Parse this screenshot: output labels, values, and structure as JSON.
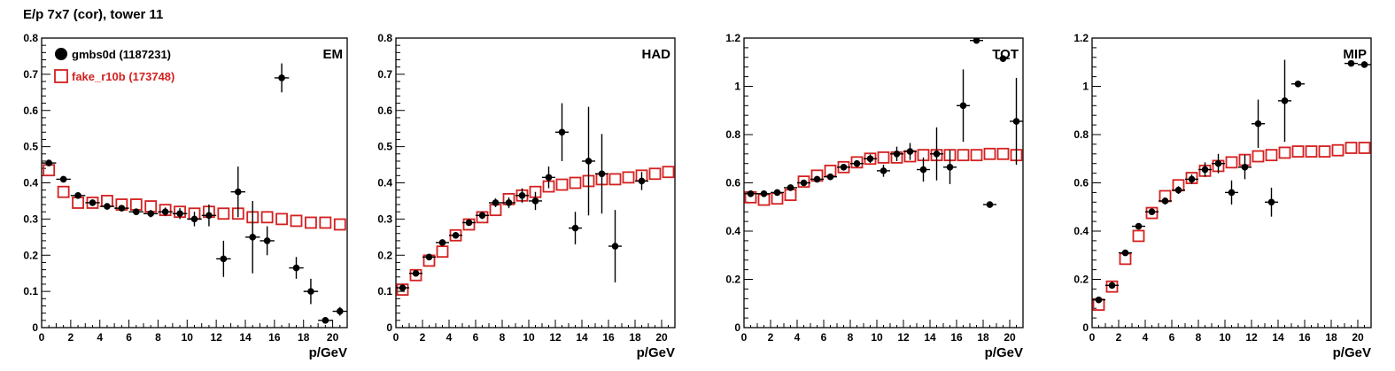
{
  "title": "E/p 7x7 (cor), tower 11",
  "colors": {
    "series_a": "#000000",
    "series_b": "#d42020"
  },
  "legend": [
    {
      "label": "gmbs0d (1187231)",
      "marker": "filled-circle",
      "color": "#000000"
    },
    {
      "label": "fake_r10b (173748)",
      "marker": "open-square",
      "color": "#d42020"
    }
  ],
  "chart_data": [
    {
      "type": "scatter",
      "panel_label": "EM",
      "xlabel": "p/GeV",
      "ylabel": "",
      "xlim": [
        0,
        21
      ],
      "ylim": [
        0,
        0.8
      ],
      "xticks": [
        0,
        2,
        4,
        6,
        8,
        10,
        12,
        14,
        16,
        18,
        20
      ],
      "yticks": [
        0,
        0.1,
        0.2,
        0.3,
        0.4,
        0.5,
        0.6,
        0.7,
        0.8
      ],
      "ytick_labels": [
        "0",
        "0.1",
        "0.2",
        "0.3",
        "0.4",
        "0.5",
        "0.6",
        "0.7",
        "0.8"
      ],
      "series": [
        {
          "name": "gmbs0d (1187231)",
          "x": [
            0.5,
            1.5,
            2.5,
            3.5,
            4.5,
            5.5,
            6.5,
            7.5,
            8.5,
            9.5,
            10.5,
            11.5,
            12.5,
            13.5,
            14.5,
            15.5,
            16.5,
            17.5,
            18.5,
            19.5,
            20.5
          ],
          "y": [
            0.455,
            0.41,
            0.365,
            0.345,
            0.335,
            0.33,
            0.32,
            0.315,
            0.32,
            0.315,
            0.3,
            0.31,
            0.19,
            0.375,
            0.25,
            0.24,
            0.69,
            0.165,
            0.1,
            0.02,
            0.045
          ],
          "err": [
            0.008,
            0.006,
            0.006,
            0.006,
            0.006,
            0.007,
            0.008,
            0.01,
            0.012,
            0.015,
            0.02,
            0.03,
            0.05,
            0.07,
            0.1,
            0.04,
            0.04,
            0.03,
            0.035,
            0.008,
            0.012
          ]
        },
        {
          "name": "fake_r10b (173748)",
          "x": [
            0.5,
            1.5,
            2.5,
            3.5,
            4.5,
            5.5,
            6.5,
            7.5,
            8.5,
            9.5,
            10.5,
            11.5,
            12.5,
            13.5,
            14.5,
            15.5,
            16.5,
            17.5,
            18.5,
            19.5,
            20.5
          ],
          "y": [
            0.435,
            0.375,
            0.345,
            0.345,
            0.35,
            0.34,
            0.34,
            0.335,
            0.325,
            0.32,
            0.315,
            0.32,
            0.315,
            0.315,
            0.305,
            0.305,
            0.3,
            0.295,
            0.29,
            0.29,
            0.285
          ]
        }
      ]
    },
    {
      "type": "scatter",
      "panel_label": "HAD",
      "xlabel": "p/GeV",
      "ylabel": "",
      "xlim": [
        0,
        21
      ],
      "ylim": [
        0,
        0.8
      ],
      "xticks": [
        0,
        2,
        4,
        6,
        8,
        10,
        12,
        14,
        16,
        18,
        20
      ],
      "yticks": [
        0,
        0.1,
        0.2,
        0.3,
        0.4,
        0.5,
        0.6,
        0.7,
        0.8
      ],
      "ytick_labels": [
        "0",
        "0.1",
        "0.2",
        "0.3",
        "0.4",
        "0.5",
        "0.6",
        "0.7",
        "0.8"
      ],
      "series": [
        {
          "name": "gmbs0d (1187231)",
          "x": [
            0.5,
            1.5,
            2.5,
            3.5,
            4.5,
            5.5,
            6.5,
            7.5,
            8.5,
            9.5,
            10.5,
            11.5,
            12.5,
            13.5,
            14.5,
            15.5,
            16.5,
            18.5
          ],
          "y": [
            0.11,
            0.15,
            0.195,
            0.235,
            0.255,
            0.29,
            0.31,
            0.345,
            0.345,
            0.365,
            0.35,
            0.415,
            0.54,
            0.275,
            0.46,
            0.425,
            0.225,
            0.405
          ],
          "err": [
            0.006,
            0.006,
            0.006,
            0.006,
            0.008,
            0.008,
            0.01,
            0.012,
            0.015,
            0.02,
            0.025,
            0.03,
            0.08,
            0.045,
            0.15,
            0.11,
            0.1,
            0.025
          ]
        },
        {
          "name": "fake_r10b (173748)",
          "x": [
            0.5,
            1.5,
            2.5,
            3.5,
            4.5,
            5.5,
            6.5,
            7.5,
            8.5,
            9.5,
            10.5,
            11.5,
            12.5,
            13.5,
            14.5,
            15.5,
            16.5,
            17.5,
            18.5,
            19.5,
            20.5
          ],
          "y": [
            0.105,
            0.145,
            0.185,
            0.21,
            0.255,
            0.285,
            0.305,
            0.325,
            0.355,
            0.365,
            0.375,
            0.39,
            0.395,
            0.4,
            0.405,
            0.41,
            0.41,
            0.415,
            0.42,
            0.425,
            0.43
          ]
        }
      ]
    },
    {
      "type": "scatter",
      "panel_label": "TOT",
      "xlabel": "p/GeV",
      "ylabel": "",
      "xlim": [
        0,
        21
      ],
      "ylim": [
        0,
        1.2
      ],
      "xticks": [
        0,
        2,
        4,
        6,
        8,
        10,
        12,
        14,
        16,
        18,
        20
      ],
      "yticks": [
        0,
        0.2,
        0.4,
        0.6,
        0.8,
        1,
        1.2
      ],
      "ytick_labels": [
        "0",
        "0.2",
        "0.4",
        "0.6",
        "0.8",
        "1",
        "1.2"
      ],
      "series": [
        {
          "name": "gmbs0d (1187231)",
          "x": [
            0.5,
            1.5,
            2.5,
            3.5,
            4.5,
            5.5,
            6.5,
            7.5,
            8.5,
            9.5,
            10.5,
            11.5,
            12.5,
            13.5,
            14.5,
            15.5,
            16.5,
            17.5,
            18.5,
            19.5,
            20.5
          ],
          "y": [
            0.555,
            0.555,
            0.56,
            0.58,
            0.6,
            0.615,
            0.625,
            0.665,
            0.68,
            0.7,
            0.65,
            0.72,
            0.73,
            0.655,
            0.72,
            0.665,
            0.92,
            1.19,
            0.51,
            1.115,
            0.855
          ],
          "err": [
            0.006,
            0.006,
            0.006,
            0.006,
            0.008,
            0.008,
            0.01,
            0.012,
            0.014,
            0.018,
            0.025,
            0.03,
            0.035,
            0.05,
            0.11,
            0.07,
            0.15,
            0.01,
            0.01,
            0.01,
            0.18
          ]
        },
        {
          "name": "fake_r10b (173748)",
          "x": [
            0.5,
            1.5,
            2.5,
            3.5,
            4.5,
            5.5,
            6.5,
            7.5,
            8.5,
            9.5,
            10.5,
            11.5,
            12.5,
            13.5,
            14.5,
            15.5,
            16.5,
            17.5,
            18.5,
            19.5,
            20.5
          ],
          "y": [
            0.54,
            0.53,
            0.535,
            0.55,
            0.605,
            0.63,
            0.65,
            0.665,
            0.685,
            0.7,
            0.705,
            0.705,
            0.71,
            0.715,
            0.715,
            0.715,
            0.715,
            0.715,
            0.72,
            0.72,
            0.715
          ]
        }
      ]
    },
    {
      "type": "scatter",
      "panel_label": "MIP",
      "xlabel": "p/GeV",
      "ylabel": "",
      "xlim": [
        0,
        21
      ],
      "ylim": [
        0,
        1.2
      ],
      "xticks": [
        0,
        2,
        4,
        6,
        8,
        10,
        12,
        14,
        16,
        18,
        20
      ],
      "yticks": [
        0,
        0.2,
        0.4,
        0.6,
        0.8,
        1,
        1.2
      ],
      "ytick_labels": [
        "0",
        "0.2",
        "0.4",
        "0.6",
        "0.8",
        "1",
        "1.2"
      ],
      "series": [
        {
          "name": "gmbs0d (1187231)",
          "x": [
            0.5,
            1.5,
            2.5,
            3.5,
            4.5,
            5.5,
            6.5,
            7.5,
            8.5,
            9.5,
            10.5,
            11.5,
            12.5,
            13.5,
            14.5,
            15.5,
            19.5,
            20.5
          ],
          "y": [
            0.115,
            0.175,
            0.31,
            0.42,
            0.48,
            0.525,
            0.57,
            0.615,
            0.655,
            0.68,
            0.56,
            0.665,
            0.845,
            0.52,
            0.94,
            1.01,
            1.095,
            1.09
          ],
          "err": [
            0.008,
            0.008,
            0.01,
            0.01,
            0.012,
            0.014,
            0.016,
            0.02,
            0.03,
            0.04,
            0.05,
            0.05,
            0.1,
            0.06,
            0.17,
            0.01,
            0.01,
            0.01
          ]
        },
        {
          "name": "fake_r10b (173748)",
          "x": [
            0.5,
            1.5,
            2.5,
            3.5,
            4.5,
            5.5,
            6.5,
            7.5,
            8.5,
            9.5,
            10.5,
            11.5,
            12.5,
            13.5,
            14.5,
            15.5,
            16.5,
            17.5,
            18.5,
            19.5,
            20.5
          ],
          "y": [
            0.095,
            0.17,
            0.285,
            0.38,
            0.475,
            0.545,
            0.59,
            0.62,
            0.65,
            0.67,
            0.685,
            0.695,
            0.71,
            0.715,
            0.725,
            0.73,
            0.73,
            0.73,
            0.735,
            0.745,
            0.745
          ]
        }
      ]
    }
  ]
}
